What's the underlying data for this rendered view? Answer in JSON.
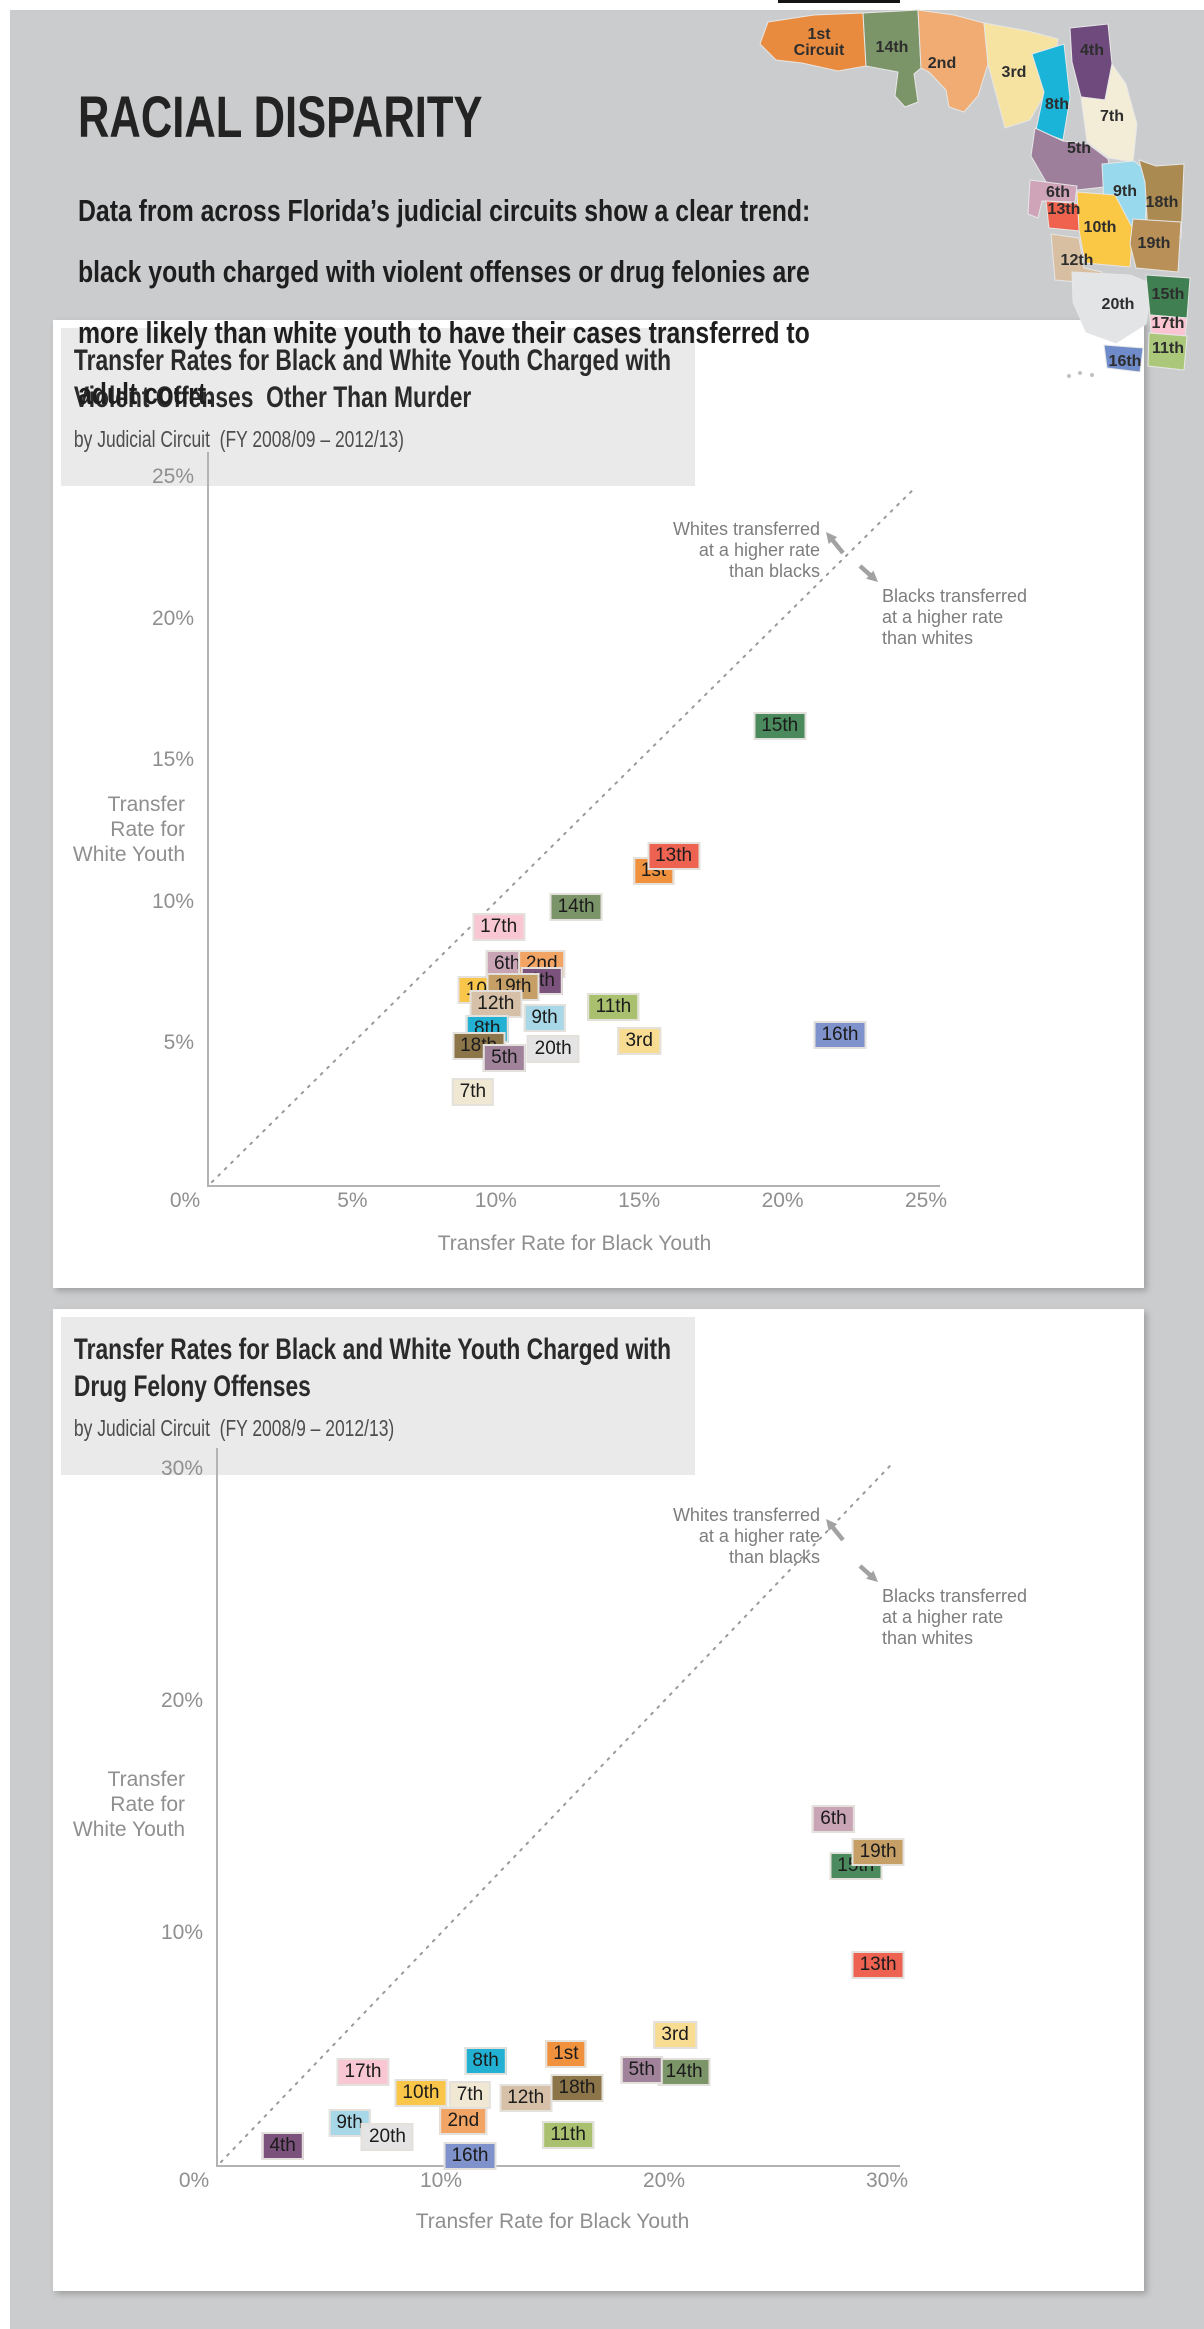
{
  "header": {
    "title": "RACIAL DISPARITY",
    "intro_lines": [
      "Data from across Florida’s judicial circuits show a clear trend:",
      "black youth charged with violent offenses or drug felonies are",
      "more likely than white youth to have their cases transferred to",
      "adult court."
    ]
  },
  "map": {
    "name": "florida-judicial-circuits",
    "regions": [
      {
        "id": "1st",
        "label_lines": [
          "1st",
          "Circuit"
        ],
        "color": "#e98b3f"
      },
      {
        "id": "14th",
        "label_lines": [
          "14th"
        ],
        "color": "#7b9569"
      },
      {
        "id": "2nd",
        "label_lines": [
          "2nd"
        ],
        "color": "#f0ac72"
      },
      {
        "id": "3rd",
        "label_lines": [
          "3rd"
        ],
        "color": "#f6e3a2"
      },
      {
        "id": "8th",
        "label_lines": [
          "8th"
        ],
        "color": "#19b4d8"
      },
      {
        "id": "4th",
        "label_lines": [
          "4th"
        ],
        "color": "#6f4a7d"
      },
      {
        "id": "7th",
        "label_lines": [
          "7th"
        ],
        "color": "#f3ecd7"
      },
      {
        "id": "5th",
        "label_lines": [
          "5th"
        ],
        "color": "#9d7f9c"
      },
      {
        "id": "9th",
        "label_lines": [
          "9th"
        ],
        "color": "#99d9ee"
      },
      {
        "id": "18th",
        "label_lines": [
          "18th"
        ],
        "color": "#ab8a52"
      },
      {
        "id": "6th",
        "label_lines": [
          "6th"
        ],
        "color": "#cfa3b8"
      },
      {
        "id": "13th",
        "label_lines": [
          "13th"
        ],
        "color": "#f0624d"
      },
      {
        "id": "10th",
        "label_lines": [
          "10th"
        ],
        "color": "#fbc845"
      },
      {
        "id": "19th",
        "label_lines": [
          "19th"
        ],
        "color": "#b99158"
      },
      {
        "id": "12th",
        "label_lines": [
          "12th"
        ],
        "color": "#d8bfa2"
      },
      {
        "id": "20th",
        "label_lines": [
          "20th"
        ],
        "color": "#e3e4e6"
      },
      {
        "id": "15th",
        "label_lines": [
          "15th"
        ],
        "color": "#3f7f51"
      },
      {
        "id": "17th",
        "label_lines": [
          "17th"
        ],
        "color": "#fac4d2"
      },
      {
        "id": "11th",
        "label_lines": [
          "11th"
        ],
        "color": "#abc87a"
      },
      {
        "id": "16th",
        "label_lines": [
          "16th"
        ],
        "color": "#6f8bc9"
      }
    ]
  },
  "chart_data": [
    {
      "type": "scatter",
      "title_lines": [
        "Transfer Rates for Black and White Youth Charged with",
        "Violent Offenses  Other Than Murder"
      ],
      "subtitle": "by Judicial Circuit  (FY 2008/09 – 2012/13)",
      "xlabel": "Transfer Rate for Black Youth",
      "ylabel_lines": [
        "Transfer",
        "Rate for",
        "White Youth"
      ],
      "xlim": [
        0,
        25
      ],
      "ylim": [
        0,
        25
      ],
      "grid": false,
      "diagonal_max": 24.5,
      "x_ticks": [
        {
          "v": 0,
          "t": "0%"
        },
        {
          "v": 5,
          "t": "5%"
        },
        {
          "v": 10,
          "t": "10%"
        },
        {
          "v": 15,
          "t": "15%"
        },
        {
          "v": 20,
          "t": "20%"
        },
        {
          "v": 25,
          "t": "25%"
        }
      ],
      "y_ticks": [
        {
          "v": 5,
          "t": "5%"
        },
        {
          "v": 10,
          "t": "10%"
        },
        {
          "v": 15,
          "t": "15%"
        },
        {
          "v": 20,
          "t": "20%"
        },
        {
          "v": 25,
          "t": "25%"
        }
      ],
      "annotations": {
        "whites_lines": [
          "Whites transferred",
          "at a higher rate",
          "than blacks"
        ],
        "blacks_lines": [
          "Blacks transferred",
          "at a higher rate",
          "than whites"
        ]
      },
      "points": [
        {
          "label": "15th",
          "black": 19.9,
          "white": 16.2,
          "color": "#4a8a5c"
        },
        {
          "label": "11th",
          "black": 14.1,
          "white": 6.3,
          "color": "#a9c06f"
        },
        {
          "label": "16th",
          "black": 22.0,
          "white": 5.3,
          "color": "#8092cb"
        },
        {
          "label": "3rd",
          "black": 15.0,
          "white": 5.1,
          "color": "#f7dc92"
        },
        {
          "label": "7th",
          "black": 9.2,
          "white": 3.3,
          "color": "#f1e8d4"
        },
        {
          "label": "14th",
          "black": 12.8,
          "white": 9.8,
          "color": "#7b9468"
        },
        {
          "label": "17th",
          "black": 10.1,
          "white": 9.1,
          "color": "#f9c7d3"
        },
        {
          "label": "10th",
          "black": 9.6,
          "white": 6.9,
          "color": "#f9c64a"
        },
        {
          "label": "6th",
          "black": 10.4,
          "white": 7.8,
          "color": "#c9a4b5"
        },
        {
          "label": "2nd",
          "black": 11.6,
          "white": 7.8,
          "color": "#f2a465"
        },
        {
          "label": "4th",
          "black": 11.6,
          "white": 7.2,
          "color": "#7b527b"
        },
        {
          "label": "19th",
          "black": 10.6,
          "white": 7.0,
          "color": "#c59f66"
        },
        {
          "label": "12th",
          "black": 10.0,
          "white": 6.4,
          "color": "#d6c1a8"
        },
        {
          "label": "9th",
          "black": 11.7,
          "white": 5.9,
          "color": "#a8d8e8"
        },
        {
          "label": "8th",
          "black": 9.7,
          "white": 5.5,
          "color": "#22b1d3"
        },
        {
          "label": "18th",
          "black": 9.4,
          "white": 4.9,
          "color": "#8b7549"
        },
        {
          "label": "5th",
          "black": 10.3,
          "white": 4.5,
          "color": "#a0839b"
        },
        {
          "label": "20th",
          "black": 12.0,
          "white": 4.8,
          "color": "#e4e4e4"
        },
        {
          "label": "1st",
          "black": 15.5,
          "white": 11.1,
          "color": "#f0913d"
        },
        {
          "label": "13th",
          "black": 16.2,
          "white": 11.6,
          "color": "#ee6252"
        }
      ]
    },
    {
      "type": "scatter",
      "title_lines": [
        "Transfer Rates for Black and White Youth Charged with",
        "Drug Felony Offenses"
      ],
      "subtitle": "by Judicial Circuit  (FY 2008/9 – 2012/13)",
      "xlabel": "Transfer Rate for Black Youth",
      "ylabel_lines": [
        "Transfer",
        "Rate for",
        "White Youth"
      ],
      "xlim": [
        0,
        30
      ],
      "ylim": [
        0,
        30
      ],
      "grid": false,
      "diagonal_max": 30.2,
      "x_ticks": [
        {
          "v": 0,
          "t": "0%"
        },
        {
          "v": 10,
          "t": "10%"
        },
        {
          "v": 20,
          "t": "20%"
        },
        {
          "v": 30,
          "t": "30%"
        }
      ],
      "y_ticks": [
        {
          "v": 10,
          "t": "10%"
        },
        {
          "v": 20,
          "t": "20%"
        },
        {
          "v": 30,
          "t": "30%"
        }
      ],
      "annotations": {
        "whites_lines": [
          "Whites transferred",
          "at a higher rate",
          "than blacks"
        ],
        "blacks_lines": [
          "Blacks transferred",
          "at a higher rate",
          "than whites"
        ]
      },
      "points": [
        {
          "label": "6th",
          "black": 27.6,
          "white": 14.9,
          "color": "#c9a4b5"
        },
        {
          "label": "15th",
          "black": 28.6,
          "white": 12.9,
          "color": "#4a8a5c"
        },
        {
          "label": "19th",
          "black": 29.6,
          "white": 13.5,
          "color": "#c59f66"
        },
        {
          "label": "13th",
          "black": 29.6,
          "white": 8.6,
          "color": "#ee6252"
        },
        {
          "label": "3rd",
          "black": 20.5,
          "white": 5.6,
          "color": "#f7dc92"
        },
        {
          "label": "17th",
          "black": 6.5,
          "white": 4.0,
          "color": "#f9c7d3"
        },
        {
          "label": "8th",
          "black": 12.0,
          "white": 4.5,
          "color": "#22b1d3"
        },
        {
          "label": "1st",
          "black": 15.6,
          "white": 4.8,
          "color": "#f0913d"
        },
        {
          "label": "14th",
          "black": 20.9,
          "white": 4.0,
          "color": "#7b9468"
        },
        {
          "label": "5th",
          "black": 19.0,
          "white": 4.1,
          "color": "#a0839b"
        },
        {
          "label": "18th",
          "black": 16.1,
          "white": 3.3,
          "color": "#8b7549"
        },
        {
          "label": "10th",
          "black": 9.1,
          "white": 3.1,
          "color": "#f9c64a"
        },
        {
          "label": "7th",
          "black": 11.3,
          "white": 3.0,
          "color": "#f1e8d4"
        },
        {
          "label": "12th",
          "black": 13.8,
          "white": 2.9,
          "color": "#d6c1a8"
        },
        {
          "label": "9th",
          "black": 5.9,
          "white": 1.8,
          "color": "#a8d8e8"
        },
        {
          "label": "2nd",
          "black": 11.0,
          "white": 1.9,
          "color": "#f2a465"
        },
        {
          "label": "20th",
          "black": 7.6,
          "white": 1.2,
          "color": "#e4e4e4"
        },
        {
          "label": "11th",
          "black": 15.7,
          "white": 1.3,
          "color": "#a9c06f"
        },
        {
          "label": "4th",
          "black": 2.9,
          "white": 0.8,
          "color": "#7b527b"
        },
        {
          "label": "16th",
          "black": 11.3,
          "white": 0.4,
          "color": "#8092cb"
        }
      ]
    }
  ]
}
